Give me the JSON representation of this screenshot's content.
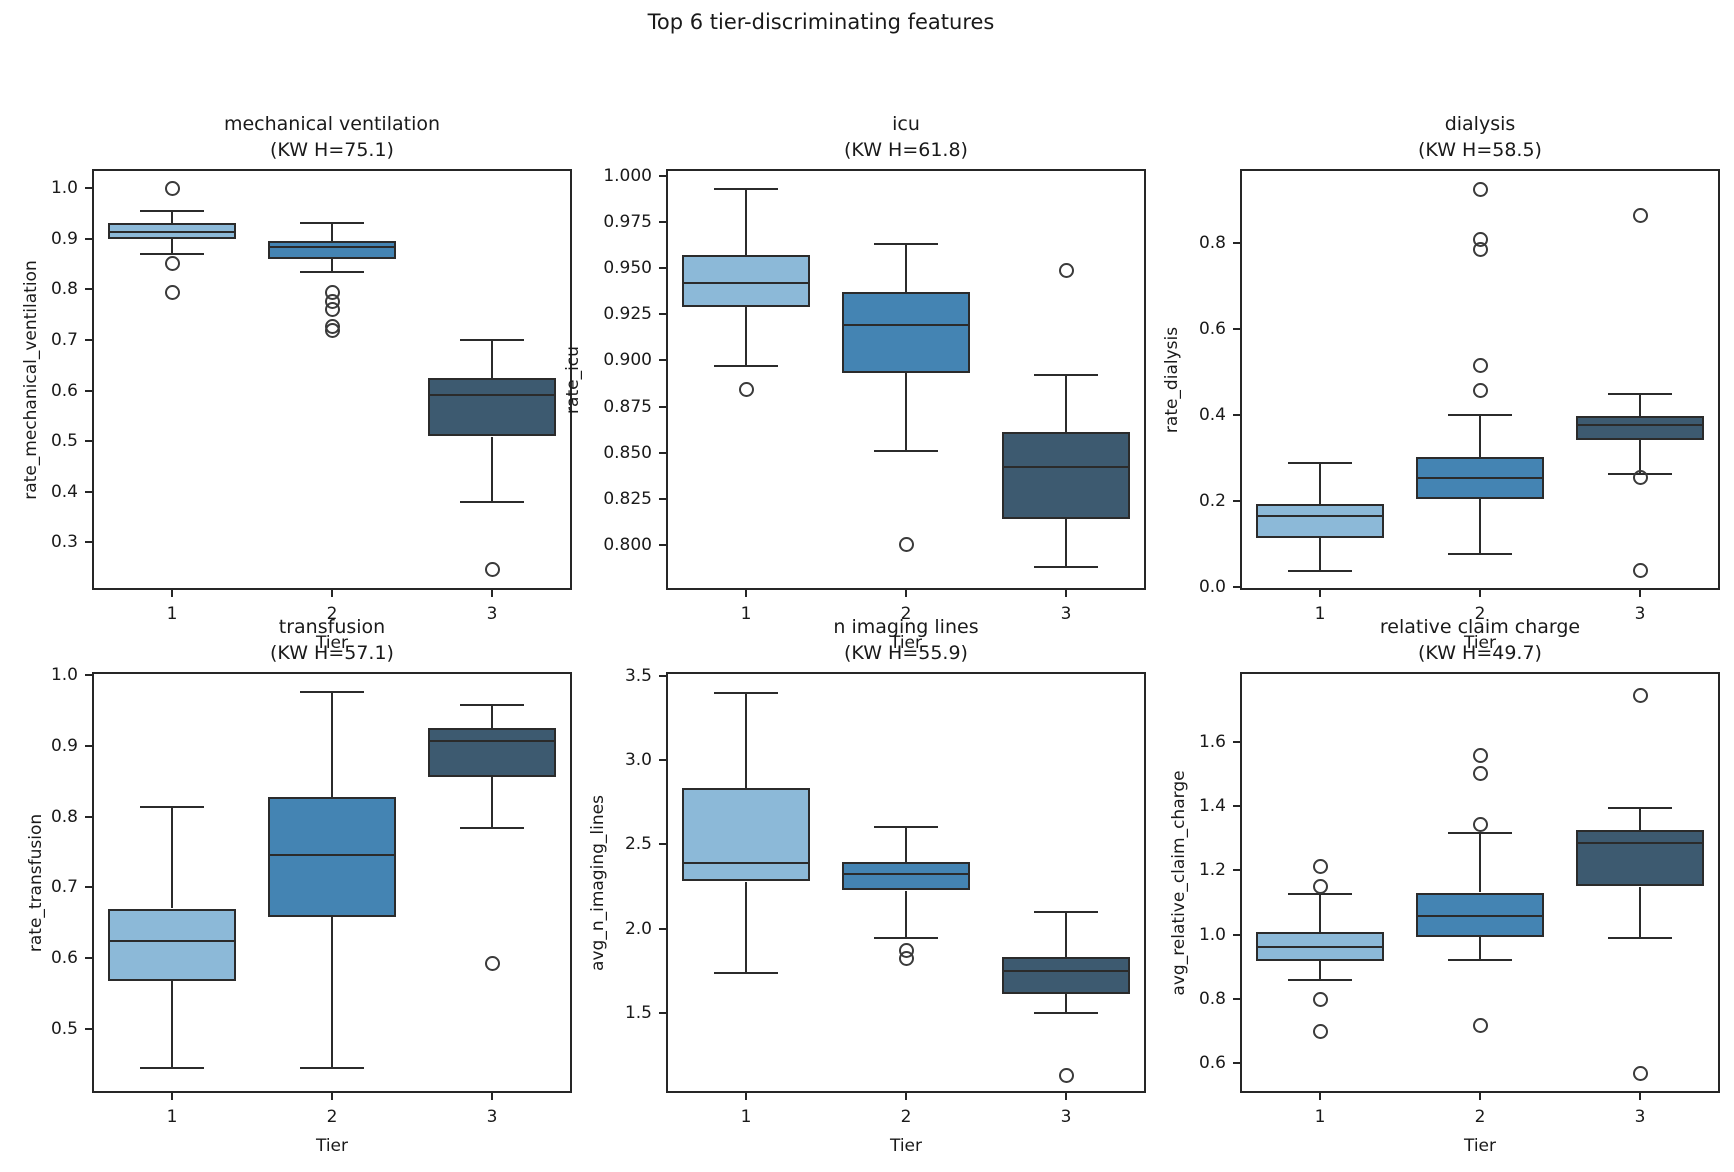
{
  "figure": {
    "suptitle": "Top 6 tier-discriminating features",
    "background": "#ffffff",
    "text_color": "#1a1a1a",
    "line_color": "#2b2b2b",
    "palette": [
      "#8cb9d8",
      "#4484b3",
      "#3d5a70"
    ]
  },
  "chart_data": [
    {
      "type": "box",
      "title": "mechanical ventilation",
      "subtitle": "(KW H=75.1)",
      "xlabel": "Tier",
      "ylabel": "rate_mechanical_ventilation",
      "categories": [
        "1",
        "2",
        "3"
      ],
      "ylim": [
        0.206,
        1.038
      ],
      "ytick_values": [
        0.3,
        0.4,
        0.5,
        0.6,
        0.7,
        0.8,
        0.9,
        1.0
      ],
      "ytick_labels": [
        "0.3",
        "0.4",
        "0.5",
        "0.6",
        "0.7",
        "0.8",
        "0.9",
        "1.0"
      ],
      "series": [
        {
          "category": "1",
          "whislo": 0.871,
          "q1": 0.9,
          "median": 0.914,
          "q3": 0.932,
          "whishi": 0.955,
          "outliers": [
            1.0,
            0.852,
            0.794
          ]
        },
        {
          "category": "2",
          "whislo": 0.835,
          "q1": 0.861,
          "median": 0.883,
          "q3": 0.896,
          "whishi": 0.931,
          "outliers": [
            0.794,
            0.776,
            0.761,
            0.726,
            0.719
          ]
        },
        {
          "category": "3",
          "whislo": 0.38,
          "q1": 0.509,
          "median": 0.591,
          "q3": 0.624,
          "whishi": 0.7,
          "outliers": [
            0.247
          ]
        }
      ]
    },
    {
      "type": "box",
      "title": "icu",
      "subtitle": "(KW H=61.8)",
      "xlabel": "Tier",
      "ylabel": "rate_icu",
      "categories": [
        "1",
        "2",
        "3"
      ],
      "ylim": [
        0.7755,
        1.0038
      ],
      "ytick_values": [
        0.8,
        0.825,
        0.85,
        0.875,
        0.9,
        0.925,
        0.95,
        0.975,
        1.0
      ],
      "ytick_labels": [
        "0.800",
        "0.825",
        "0.850",
        "0.875",
        "0.900",
        "0.925",
        "0.950",
        "0.975",
        "1.000"
      ],
      "series": [
        {
          "category": "1",
          "whislo": 0.897,
          "q1": 0.929,
          "median": 0.942,
          "q3": 0.957,
          "whishi": 0.993,
          "outliers": [
            0.884
          ]
        },
        {
          "category": "2",
          "whislo": 0.851,
          "q1": 0.893,
          "median": 0.919,
          "q3": 0.937,
          "whishi": 0.963,
          "outliers": [
            0.8
          ]
        },
        {
          "category": "3",
          "whislo": 0.788,
          "q1": 0.814,
          "median": 0.842,
          "q3": 0.861,
          "whishi": 0.892,
          "outliers": [
            0.949
          ]
        }
      ]
    },
    {
      "type": "box",
      "title": "dialysis",
      "subtitle": "(KW H=58.5)",
      "xlabel": "Tier",
      "ylabel": "rate_dialysis",
      "categories": [
        "1",
        "2",
        "3"
      ],
      "ylim": [
        -0.007,
        0.972
      ],
      "ytick_values": [
        0.0,
        0.2,
        0.4,
        0.6,
        0.8
      ],
      "ytick_labels": [
        "0.0",
        "0.2",
        "0.4",
        "0.6",
        "0.8"
      ],
      "series": [
        {
          "category": "1",
          "whislo": 0.038,
          "q1": 0.115,
          "median": 0.165,
          "q3": 0.193,
          "whishi": 0.288,
          "outliers": []
        },
        {
          "category": "2",
          "whislo": 0.077,
          "q1": 0.206,
          "median": 0.254,
          "q3": 0.303,
          "whishi": 0.4,
          "outliers": [
            0.925,
            0.807,
            0.784,
            0.514,
            0.458
          ]
        },
        {
          "category": "3",
          "whislo": 0.263,
          "q1": 0.342,
          "median": 0.377,
          "q3": 0.398,
          "whishi": 0.449,
          "outliers": [
            0.863,
            0.255,
            0.038
          ]
        }
      ]
    },
    {
      "type": "box",
      "title": "transfusion",
      "subtitle": "(KW H=57.1)",
      "xlabel": "Tier",
      "ylabel": "rate_transfusion",
      "categories": [
        "1",
        "2",
        "3"
      ],
      "ylim": [
        0.41,
        1.004
      ],
      "ytick_values": [
        0.5,
        0.6,
        0.7,
        0.8,
        0.9,
        1.0
      ],
      "ytick_labels": [
        "0.5",
        "0.6",
        "0.7",
        "0.8",
        "0.9",
        "1.0"
      ],
      "series": [
        {
          "category": "1",
          "whislo": 0.445,
          "q1": 0.569,
          "median": 0.624,
          "q3": 0.67,
          "whishi": 0.813,
          "outliers": []
        },
        {
          "category": "2",
          "whislo": 0.445,
          "q1": 0.658,
          "median": 0.746,
          "q3": 0.828,
          "whishi": 0.976,
          "outliers": []
        },
        {
          "category": "3",
          "whislo": 0.784,
          "q1": 0.856,
          "median": 0.906,
          "q3": 0.925,
          "whishi": 0.958,
          "outliers": [
            0.593
          ]
        }
      ]
    },
    {
      "type": "box",
      "title": "n imaging lines",
      "subtitle": "(KW H=55.9)",
      "xlabel": "Tier",
      "ylabel": "avg_n_imaging_lines",
      "categories": [
        "1",
        "2",
        "3"
      ],
      "ylim": [
        1.024,
        3.524
      ],
      "ytick_values": [
        1.5,
        2.0,
        2.5,
        3.0,
        3.5
      ],
      "ytick_labels": [
        "1.5",
        "2.0",
        "2.5",
        "3.0",
        "3.5"
      ],
      "series": [
        {
          "category": "1",
          "whislo": 1.738,
          "q1": 2.279,
          "median": 2.388,
          "q3": 2.833,
          "whishi": 3.401,
          "outliers": []
        },
        {
          "category": "2",
          "whislo": 1.946,
          "q1": 2.225,
          "median": 2.324,
          "q3": 2.394,
          "whishi": 2.605,
          "outliers": [
            1.868,
            1.824
          ]
        },
        {
          "category": "3",
          "whislo": 1.497,
          "q1": 1.612,
          "median": 1.75,
          "q3": 1.833,
          "whishi": 2.1,
          "outliers": [
            1.125
          ]
        }
      ]
    },
    {
      "type": "box",
      "title": "relative claim charge",
      "subtitle": "(KW H=49.7)",
      "xlabel": "Tier",
      "ylabel": "avg_relative_claim_charge",
      "categories": [
        "1",
        "2",
        "3"
      ],
      "ylim": [
        0.508,
        1.817
      ],
      "ytick_values": [
        0.6,
        0.8,
        1.0,
        1.2,
        1.4,
        1.6
      ],
      "ytick_labels": [
        "0.6",
        "0.8",
        "1.0",
        "1.2",
        "1.4",
        "1.6"
      ],
      "series": [
        {
          "category": "1",
          "whislo": 0.859,
          "q1": 0.919,
          "median": 0.962,
          "q3": 1.009,
          "whishi": 1.127,
          "outliers": [
            1.212,
            1.15,
            0.8,
            0.699
          ]
        },
        {
          "category": "2",
          "whislo": 0.923,
          "q1": 0.994,
          "median": 1.058,
          "q3": 1.13,
          "whishi": 1.315,
          "outliers": [
            1.556,
            1.502,
            1.344,
            0.717
          ]
        },
        {
          "category": "3",
          "whislo": 0.989,
          "q1": 1.15,
          "median": 1.284,
          "q3": 1.325,
          "whishi": 1.393,
          "outliers": [
            1.745,
            0.569
          ]
        }
      ]
    }
  ]
}
